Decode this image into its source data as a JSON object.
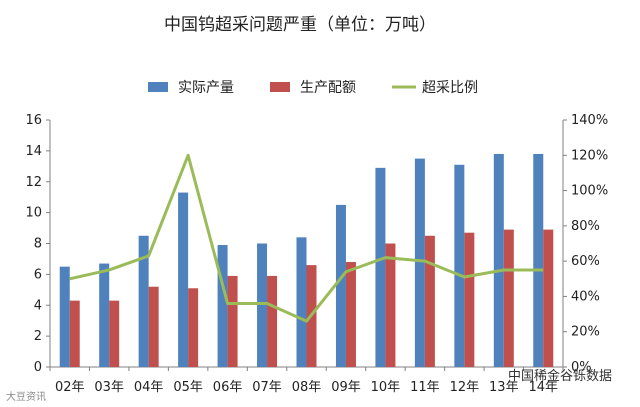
{
  "chart_data": {
    "type": "bar",
    "title": "中国钨超采问题严重（单位：万吨）",
    "categories": [
      "02年",
      "03年",
      "04年",
      "05年",
      "06年",
      "07年",
      "08年",
      "09年",
      "10年",
      "11年",
      "12年",
      "13年",
      "14年"
    ],
    "series": [
      {
        "name": "实际产量",
        "type": "bar",
        "axis": "left",
        "color": "#4f81bd",
        "values": [
          6.5,
          6.7,
          8.5,
          11.3,
          7.9,
          8.0,
          8.4,
          10.5,
          12.9,
          13.5,
          13.1,
          13.8,
          13.8
        ]
      },
      {
        "name": "生产配额",
        "type": "bar",
        "axis": "left",
        "color": "#c0504d",
        "values": [
          4.3,
          4.3,
          5.2,
          5.1,
          5.9,
          5.9,
          6.6,
          6.8,
          8.0,
          8.5,
          8.7,
          8.9,
          8.9
        ]
      },
      {
        "name": "超采比例",
        "type": "line",
        "axis": "right",
        "color": "#9bbb59",
        "values": [
          0.5,
          0.55,
          0.63,
          1.2,
          0.36,
          0.36,
          0.26,
          0.54,
          0.62,
          0.6,
          0.51,
          0.55,
          0.55
        ]
      }
    ],
    "y_left": {
      "min": 0,
      "max": 16,
      "ticks": [
        "0",
        "2",
        "4",
        "6",
        "8",
        "10",
        "12",
        "14",
        "16"
      ]
    },
    "y_right": {
      "min": 0,
      "max": 1.4,
      "ticks": [
        "0%",
        "20%",
        "40%",
        "60%",
        "80%",
        "100%",
        "120%",
        "140%"
      ]
    },
    "grid": false,
    "legend_position": "top"
  },
  "watermarks": {
    "right": "中国稀金谷铄数据",
    "left": "大豆资讯"
  }
}
